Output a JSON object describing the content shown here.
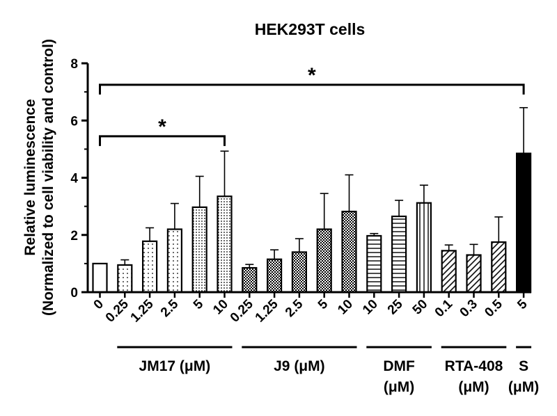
{
  "chart_data": {
    "type": "bar",
    "title": "HEK293T cells",
    "ylabel_line1": "Relative luminescence",
    "ylabel_line2": "(Normalized to cell viability and control)",
    "ylim": [
      0,
      8
    ],
    "yticks": [
      "0",
      "2",
      "4",
      "6",
      "8"
    ],
    "grid": false,
    "categories": [
      "0",
      "0.25",
      "1.25",
      "2.5",
      "5",
      "10",
      "0.25",
      "1.25",
      "2.5",
      "5",
      "10",
      "10",
      "25",
      "50",
      "0.1",
      "0.3",
      "0.5",
      "5"
    ],
    "values": [
      1.0,
      0.95,
      1.78,
      2.2,
      2.97,
      3.35,
      0.85,
      1.15,
      1.4,
      2.2,
      2.82,
      1.97,
      2.65,
      3.12,
      1.45,
      1.3,
      1.75,
      4.85
    ],
    "errors": [
      0.0,
      0.18,
      0.47,
      0.9,
      1.08,
      1.58,
      0.12,
      0.33,
      0.47,
      1.25,
      1.28,
      0.08,
      0.56,
      0.62,
      0.2,
      0.37,
      0.88,
      1.6
    ],
    "patterns": [
      "open",
      "dots-sparse",
      "dots-sparse",
      "dots-sparse",
      "dots-dense",
      "dots-dense",
      "checker",
      "checker",
      "checker",
      "checker",
      "checker",
      "hlines",
      "hlines",
      "vlines",
      "diag",
      "diag",
      "diag",
      "solid"
    ],
    "groups": [
      {
        "label_line1": "JM17 (μM)",
        "label_line2": "",
        "bar_range": [
          1,
          5
        ]
      },
      {
        "label_line1": "J9 (μM)",
        "label_line2": "",
        "bar_range": [
          6,
          10
        ]
      },
      {
        "label_line1": "DMF",
        "label_line2": "(μM)",
        "bar_range": [
          11,
          13
        ]
      },
      {
        "label_line1": "RTA-408",
        "label_line2": "(μM)",
        "bar_range": [
          14,
          16
        ]
      },
      {
        "label_line1": "S",
        "label_line2": "(μM)",
        "bar_range": [
          17,
          17
        ]
      }
    ],
    "significance": [
      {
        "from": 0,
        "to": 5,
        "y": 5.45,
        "label": "*"
      },
      {
        "from": 0,
        "to": 17,
        "y": 7.25,
        "label": "*"
      }
    ]
  }
}
